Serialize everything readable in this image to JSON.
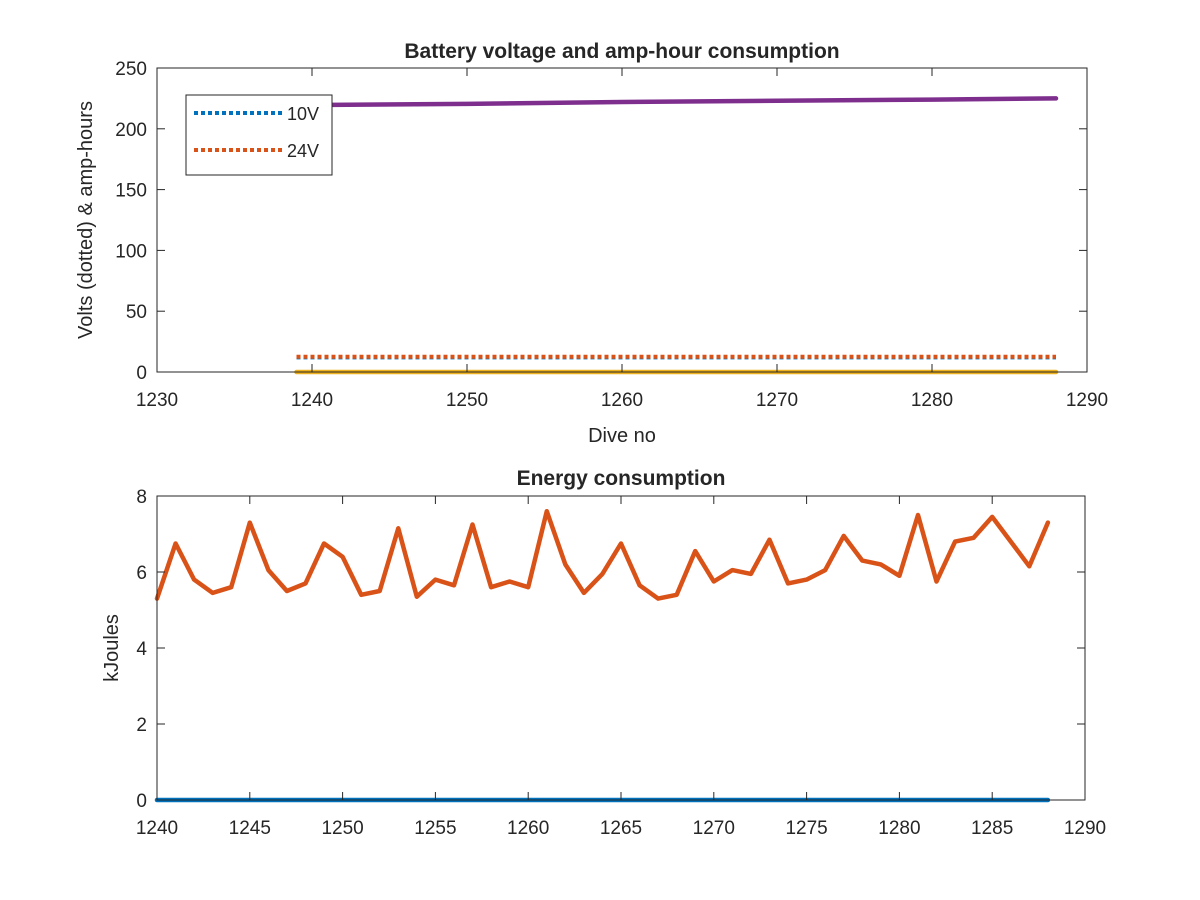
{
  "chart_data": [
    {
      "type": "line",
      "title": "Battery voltage and amp-hour consumption",
      "xlabel": "Dive no",
      "ylabel": "Volts (dotted) & amp-hours",
      "xlim": [
        1230,
        1290
      ],
      "ylim": [
        0,
        250
      ],
      "xticks": [
        1230,
        1240,
        1250,
        1260,
        1270,
        1280,
        1290
      ],
      "yticks": [
        0,
        50,
        100,
        150,
        200,
        250
      ],
      "grid": false,
      "legend_position": "top-left",
      "series": [
        {
          "name": "10V",
          "style": "dotted",
          "color": "#0072BD",
          "x": [
            1239,
            1250,
            1260,
            1270,
            1280,
            1288
          ],
          "y": [
            12,
            12,
            12,
            12,
            12,
            12
          ]
        },
        {
          "name": "24V",
          "style": "dotted",
          "color": "#D95319",
          "x": [
            1239,
            1250,
            1260,
            1270,
            1280,
            1288
          ],
          "y": [
            12.5,
            12.5,
            12.5,
            12.5,
            12.5,
            12.5
          ]
        },
        {
          "name": "",
          "style": "solid",
          "color": "#EDB120",
          "x": [
            1239,
            1288
          ],
          "y": [
            0,
            0
          ]
        },
        {
          "name": "",
          "style": "solid",
          "color": "#7E2F8E",
          "x": [
            1239,
            1250,
            1260,
            1270,
            1280,
            1288
          ],
          "y": [
            219.5,
            220.5,
            222,
            223,
            224,
            225
          ]
        }
      ]
    },
    {
      "type": "line",
      "title": "Energy consumption",
      "xlabel": "",
      "ylabel": "kJoules",
      "xlim": [
        1240,
        1290
      ],
      "ylim": [
        0,
        8
      ],
      "xticks": [
        1240,
        1245,
        1250,
        1255,
        1260,
        1265,
        1270,
        1275,
        1280,
        1285,
        1290
      ],
      "yticks": [
        0,
        2,
        4,
        6,
        8
      ],
      "grid": false,
      "series": [
        {
          "name": "",
          "style": "solid",
          "color": "#D95319",
          "x": [
            1240,
            1241,
            1242,
            1243,
            1244,
            1245,
            1246,
            1247,
            1248,
            1249,
            1250,
            1251,
            1252,
            1253,
            1254,
            1255,
            1256,
            1257,
            1258,
            1259,
            1260,
            1261,
            1262,
            1263,
            1264,
            1265,
            1266,
            1267,
            1268,
            1269,
            1270,
            1271,
            1272,
            1273,
            1274,
            1275,
            1276,
            1277,
            1278,
            1279,
            1280,
            1281,
            1282,
            1283,
            1284,
            1285,
            1286,
            1287,
            1288
          ],
          "y": [
            5.3,
            6.75,
            5.8,
            5.45,
            5.6,
            7.3,
            6.05,
            5.5,
            5.7,
            6.75,
            6.4,
            5.4,
            5.5,
            7.15,
            5.35,
            5.8,
            5.65,
            7.25,
            5.6,
            5.75,
            5.6,
            7.6,
            6.2,
            5.45,
            5.95,
            6.75,
            5.65,
            5.3,
            5.4,
            6.55,
            5.75,
            6.05,
            5.95,
            6.85,
            5.7,
            5.8,
            6.05,
            6.95,
            6.3,
            6.2,
            5.9,
            7.5,
            5.75,
            6.8,
            6.9,
            7.45,
            6.8,
            6.15,
            7.3
          ]
        },
        {
          "name": "",
          "style": "solid",
          "color": "#0072BD",
          "x": [
            1240,
            1288
          ],
          "y": [
            0,
            0
          ]
        }
      ]
    }
  ]
}
